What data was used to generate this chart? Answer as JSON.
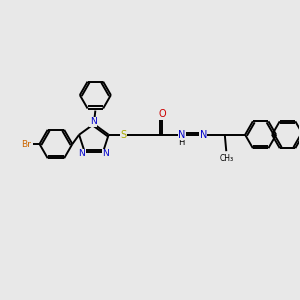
{
  "background_color": "#e8e8e8",
  "figsize": [
    3.0,
    3.0
  ],
  "dpi": 100,
  "atom_colors": {
    "C": "#000000",
    "N": "#0000cc",
    "O": "#cc0000",
    "S": "#aaaa00",
    "Br": "#cc6600",
    "H": "#000000"
  },
  "bond_color": "#000000",
  "line_width": 1.4,
  "xlim": [
    0,
    10
  ],
  "ylim": [
    0,
    10
  ]
}
